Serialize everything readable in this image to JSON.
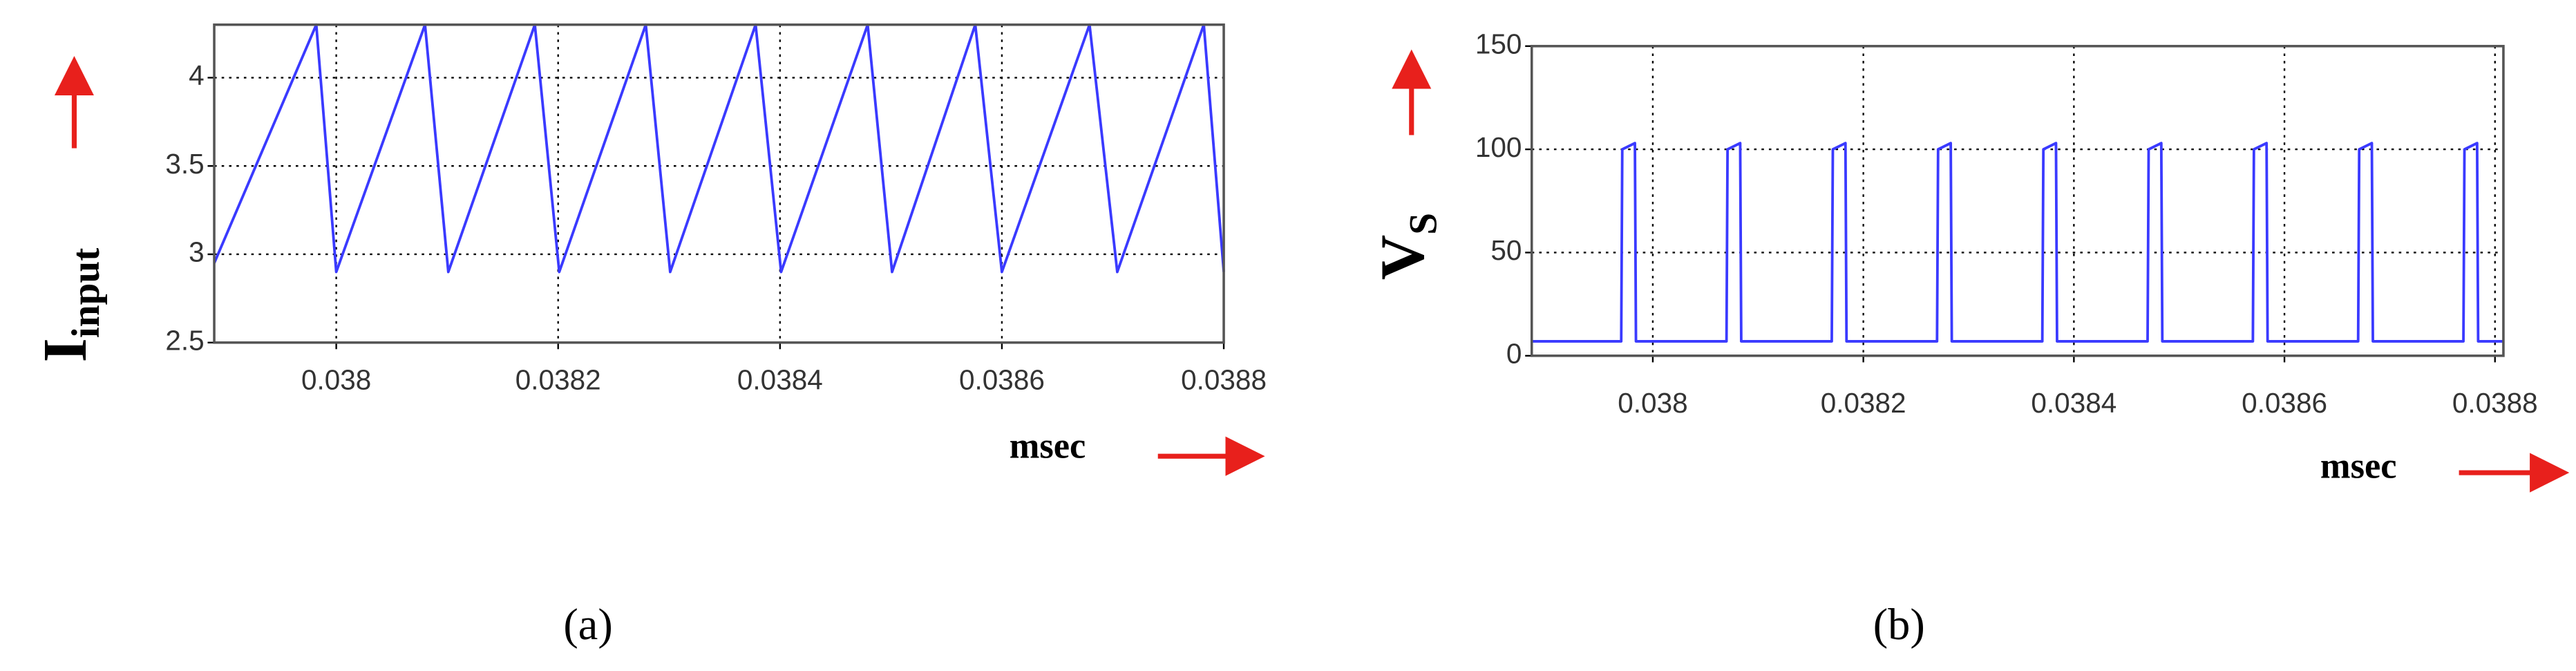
{
  "chart_data": [
    {
      "type": "line",
      "xlabel": "msec",
      "ylabel": "I",
      "ylabel_sub": "input",
      "panel_label": "(a)",
      "x": [
        0.03789,
        0.037982,
        0.038,
        0.03808,
        0.038101,
        0.038179,
        0.038201,
        0.038279,
        0.038301,
        0.038378,
        0.038401,
        0.038479,
        0.038501,
        0.038576,
        0.0386,
        0.038679,
        0.038704,
        0.038782,
        0.0388
      ],
      "values": [
        2.95,
        4.3,
        2.9,
        4.3,
        2.9,
        4.3,
        2.9,
        4.3,
        2.9,
        4.3,
        2.9,
        4.3,
        2.9,
        4.3,
        2.9,
        4.3,
        2.9,
        4.3,
        2.9
      ],
      "color": "#3a3aff",
      "xlim": [
        0.03789,
        0.0388
      ],
      "ylim": [
        2.5,
        4.3
      ],
      "xticks": [
        0.038,
        0.0382,
        0.0384,
        0.0386,
        0.0388
      ],
      "yticks": [
        2.5,
        3,
        3.5,
        4
      ],
      "grid": true
    },
    {
      "type": "line",
      "xlabel": "msec",
      "ylabel": "V",
      "ylabel_sub": "S",
      "panel_label": "(b)",
      "x": [
        0.037885,
        0.03797,
        0.037971,
        0.037983,
        0.037984,
        0.03807,
        0.038071,
        0.038083,
        0.038084,
        0.03817,
        0.038171,
        0.038183,
        0.038184,
        0.03827,
        0.038271,
        0.038283,
        0.038284,
        0.03837,
        0.038371,
        0.038383,
        0.038384,
        0.03847,
        0.038471,
        0.038483,
        0.038484,
        0.03857,
        0.038571,
        0.038583,
        0.038584,
        0.03867,
        0.038671,
        0.038683,
        0.038684,
        0.03877,
        0.038771,
        0.038783,
        0.038784,
        0.038808
      ],
      "values": [
        7,
        7,
        100,
        103,
        7,
        7,
        100,
        103,
        7,
        7,
        100,
        103,
        7,
        7,
        100,
        103,
        7,
        7,
        100,
        103,
        7,
        7,
        100,
        103,
        7,
        7,
        100,
        103,
        7,
        7,
        100,
        103,
        7,
        7,
        100,
        103,
        7,
        7
      ],
      "color": "#3a3aff",
      "xlim": [
        0.037885,
        0.038808
      ],
      "ylim": [
        0,
        150
      ],
      "xticks": [
        0.038,
        0.0382,
        0.0384,
        0.0386,
        0.0388
      ],
      "yticks": [
        0,
        50,
        100,
        150
      ],
      "grid": true
    }
  ]
}
